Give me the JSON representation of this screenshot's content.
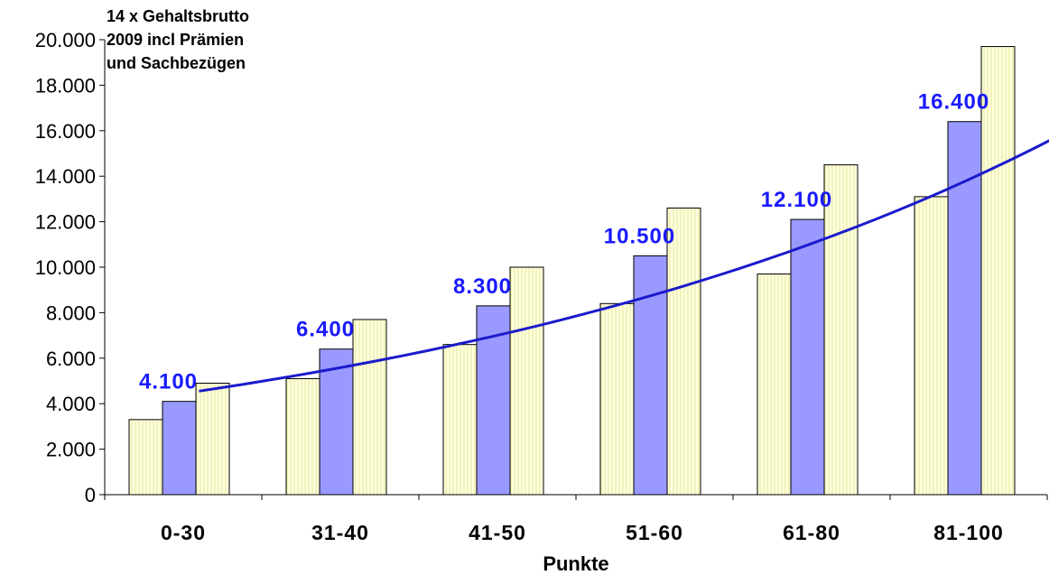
{
  "chart_data": {
    "type": "bar",
    "title_lines": [
      "14 x Gehaltsbrutto",
      "2009 incl Prämien",
      "und Sachbezügen"
    ],
    "xlabel": "Punkte",
    "ylabel": "",
    "ylim": [
      0,
      20000
    ],
    "yticks": [
      0,
      2000,
      4000,
      6000,
      8000,
      10000,
      12000,
      14000,
      16000,
      18000,
      20000
    ],
    "ytick_labels": [
      "0",
      "2.000",
      "4.000",
      "6.000",
      "8.000",
      "10.000",
      "12.000",
      "14.000",
      "16.000",
      "18.000",
      "20.000"
    ],
    "categories": [
      "0-30",
      "31-40",
      "41-50",
      "51-60",
      "61-80",
      "81-100"
    ],
    "series": [
      {
        "values": [
          3300,
          5100,
          6600,
          8400,
          9700,
          13100
        ]
      },
      {
        "values": [
          4100,
          6400,
          8300,
          10500,
          12100,
          16400
        ]
      },
      {
        "values": [
          4900,
          7700,
          10000,
          12600,
          14500,
          19700
        ]
      }
    ],
    "data_labels": [
      "4.100",
      "6.400",
      "8.300",
      "10.500",
      "12.100",
      "16.400"
    ],
    "trendline": {
      "x_start": 0.1,
      "x_end": 5.85,
      "y_start": 4550,
      "y_end": 16800
    },
    "colors": {
      "bar_light": "#ffffdd",
      "bar_stripe": "#e6e6a0",
      "bar_mid": "#9999ff",
      "trendline": "#1a1acc",
      "data_label": "#1a1aff",
      "axis": "#000000"
    },
    "grid": false,
    "legend": "none"
  }
}
